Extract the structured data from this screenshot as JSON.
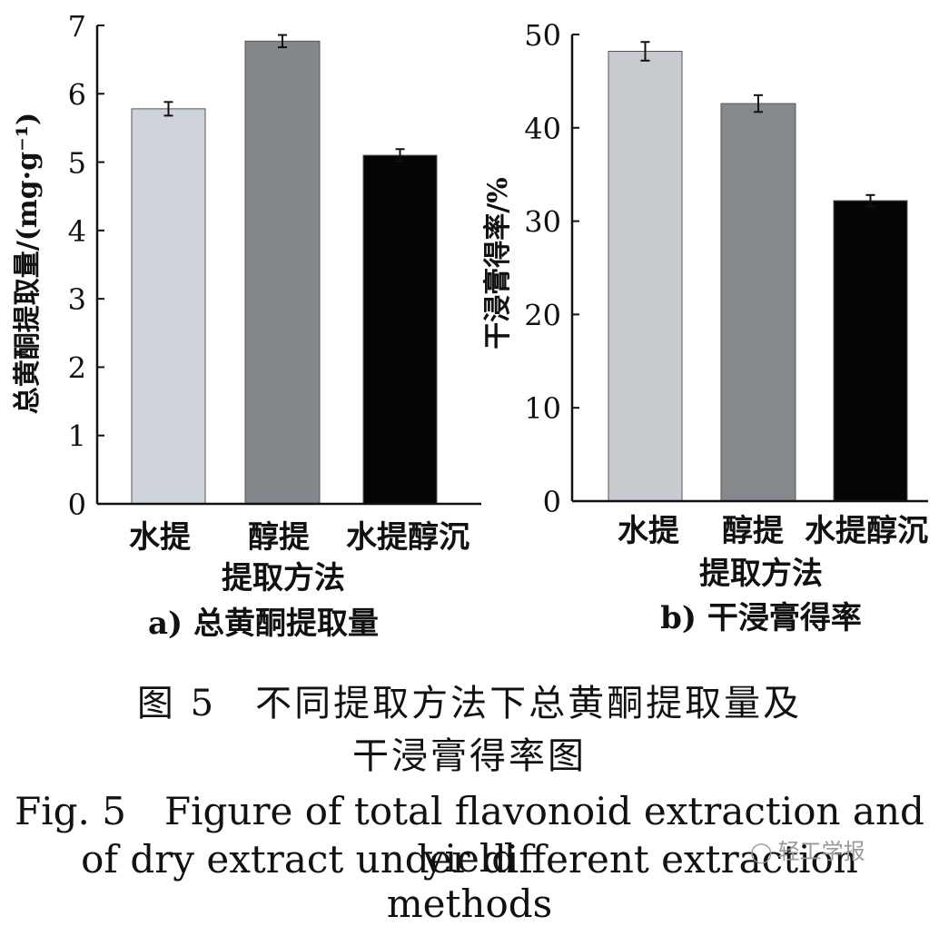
{
  "chart_data": [
    {
      "type": "bar",
      "panel_label": "a) 总黄酮提取量",
      "xlabel": "提取方法",
      "ylabel": "总黄酮提取量/(mg·g⁻¹)",
      "categories": [
        "水提",
        "醇提",
        "水提醇沉"
      ],
      "values": [
        5.78,
        6.77,
        5.1
      ],
      "errors": [
        0.1,
        0.09,
        0.09
      ],
      "bar_colors": [
        "#cfd4dc",
        "#84878c",
        "#050505"
      ],
      "ylim": [
        0,
        7
      ],
      "yticks": [
        0,
        1,
        2,
        3,
        4,
        5,
        6,
        7
      ],
      "grid": false
    },
    {
      "type": "bar",
      "panel_label": "b) 干浸膏得率",
      "xlabel": "提取方法",
      "ylabel": "干浸膏得率/%",
      "categories": [
        "水提",
        "醇提",
        "水提醇沉"
      ],
      "values": [
        48.2,
        42.6,
        32.2
      ],
      "errors": [
        1.0,
        0.9,
        0.6
      ],
      "bar_colors": [
        "#c7cbcf",
        "#85888c",
        "#050505"
      ],
      "ylim": [
        0,
        50
      ],
      "yticks": [
        0,
        10,
        20,
        30,
        40,
        50
      ],
      "grid": false
    }
  ],
  "caption": {
    "cn_line1": "图 5　不同提取方法下总黄酮提取量及",
    "cn_line2": "干浸膏得率图",
    "en_line1": "Fig. 5　Figure of total flavonoid extraction and yield",
    "en_line2": "of dry extract under different extraction methods"
  },
  "watermark": {
    "text": "轻工学报",
    "icon": "wechat-icon"
  }
}
